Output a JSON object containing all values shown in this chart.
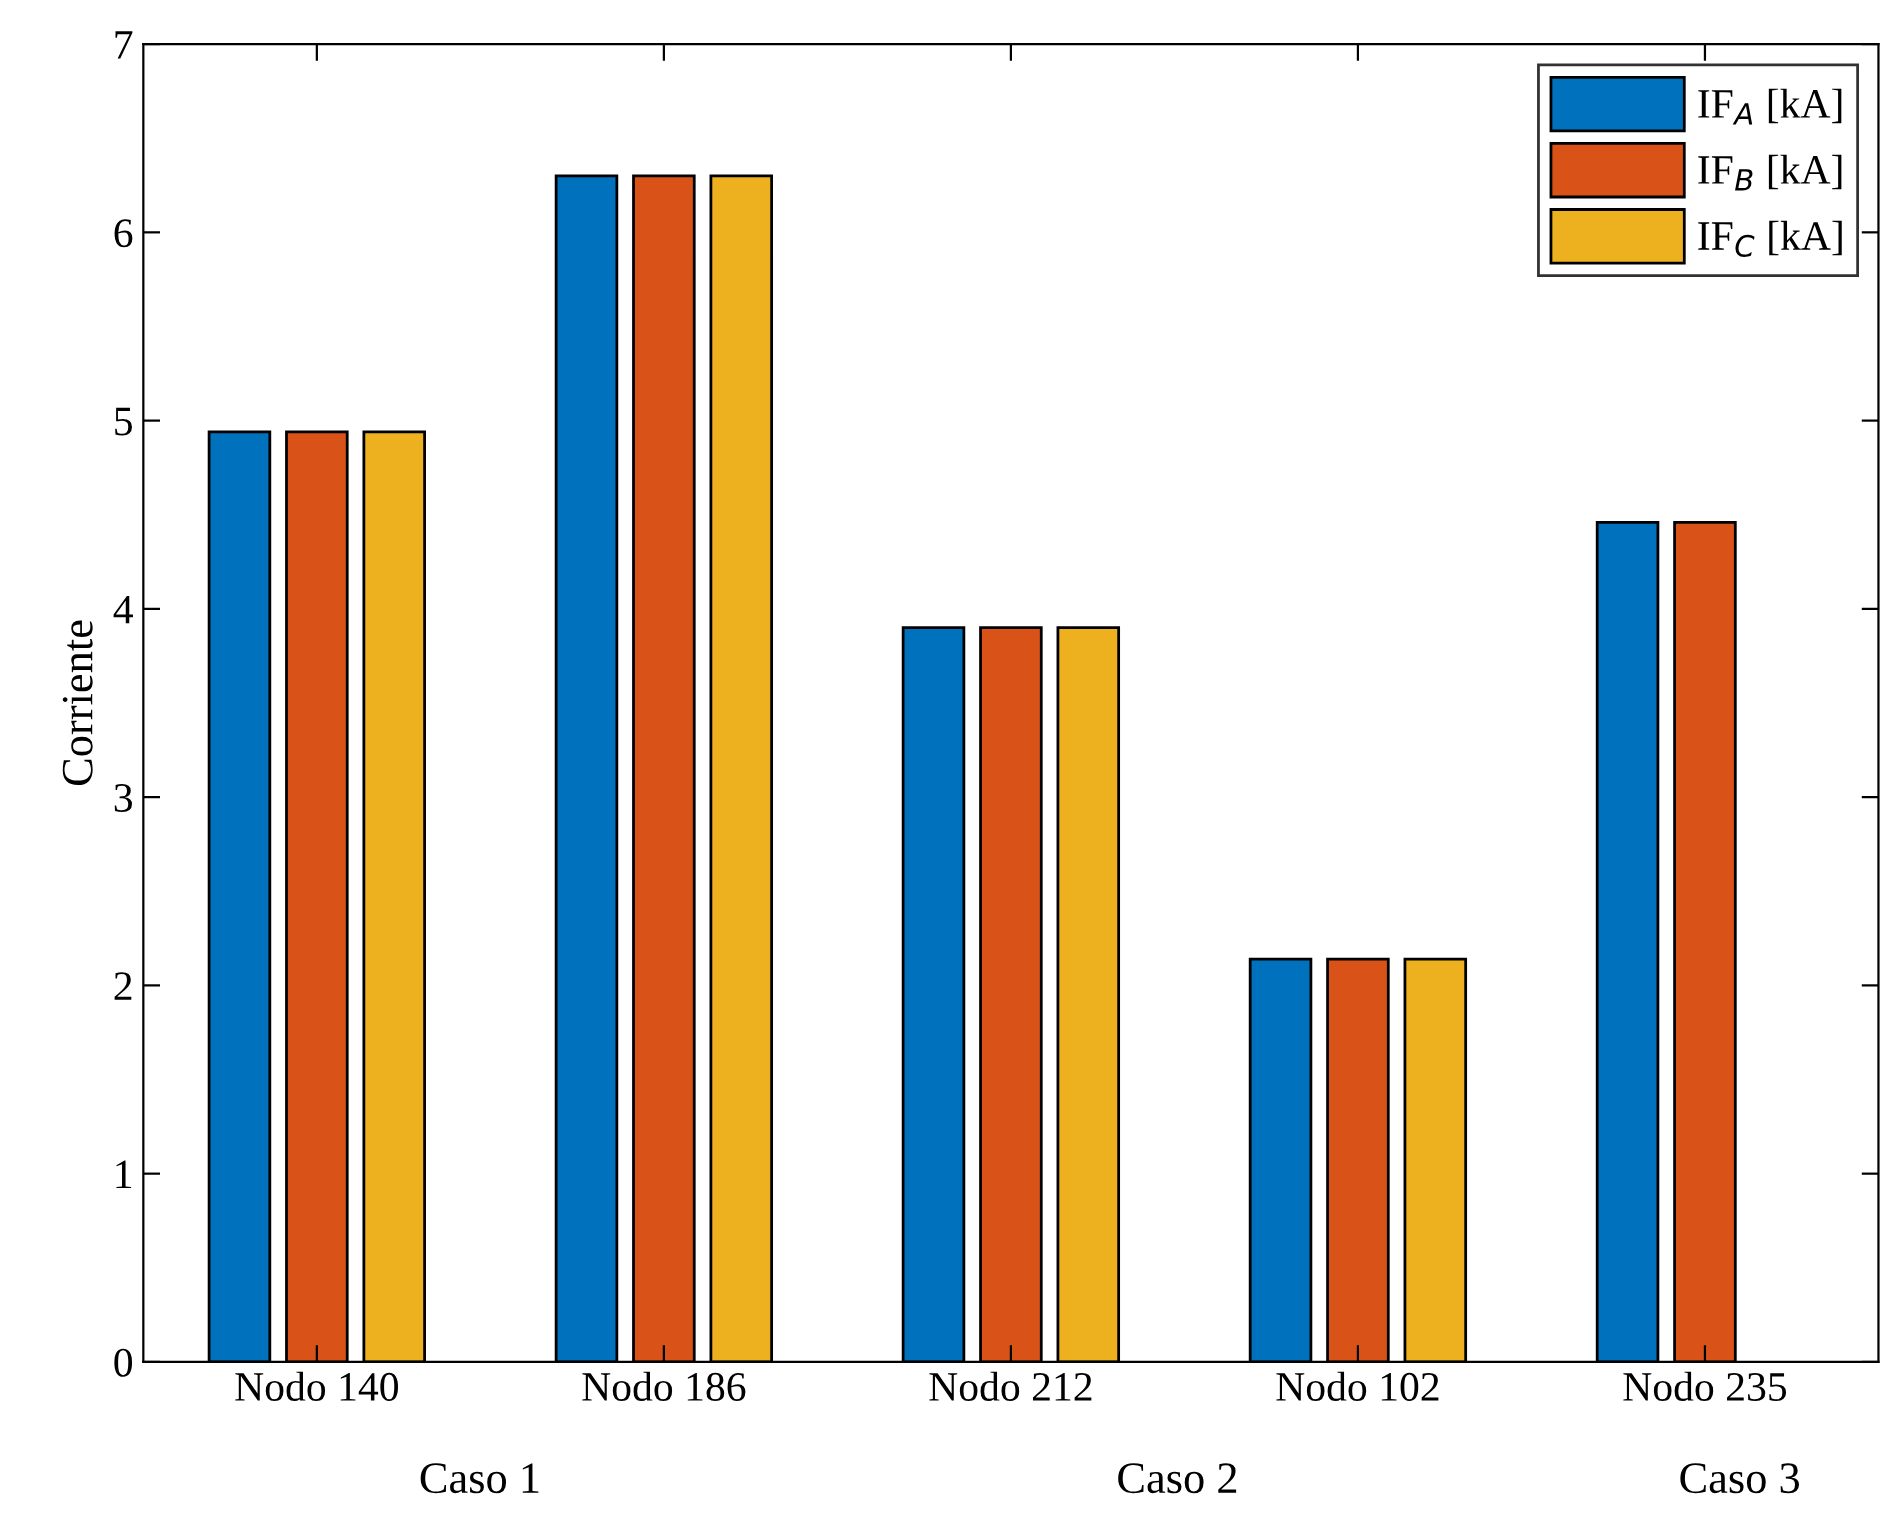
{
  "chart_data": {
    "type": "bar",
    "ylabel": "Corriente",
    "categories": [
      "Nodo 140",
      "Nodo 186",
      "Nodo 212",
      "Nodo 102",
      "Nodo 235"
    ],
    "series": [
      {
        "name": "IF$_{A}$ [kA]",
        "color": "#0072bd",
        "values": [
          4.94,
          6.3,
          3.9,
          2.14,
          4.46
        ]
      },
      {
        "name": "IF$_{B}$ [kA]",
        "color": "#d95319",
        "values": [
          4.94,
          6.3,
          3.9,
          2.14,
          4.46
        ]
      },
      {
        "name": "IF$_{C}$ [kA]",
        "color": "#edb120",
        "values": [
          4.94,
          6.3,
          3.9,
          2.14,
          null
        ]
      }
    ],
    "ylim": [
      0,
      7
    ],
    "yticks": [
      0,
      1,
      2,
      3,
      4,
      5,
      6,
      7
    ],
    "legend": "top right",
    "grid": false,
    "annotations": [
      "Caso 1",
      "Caso 2",
      "Caso 3"
    ]
  }
}
